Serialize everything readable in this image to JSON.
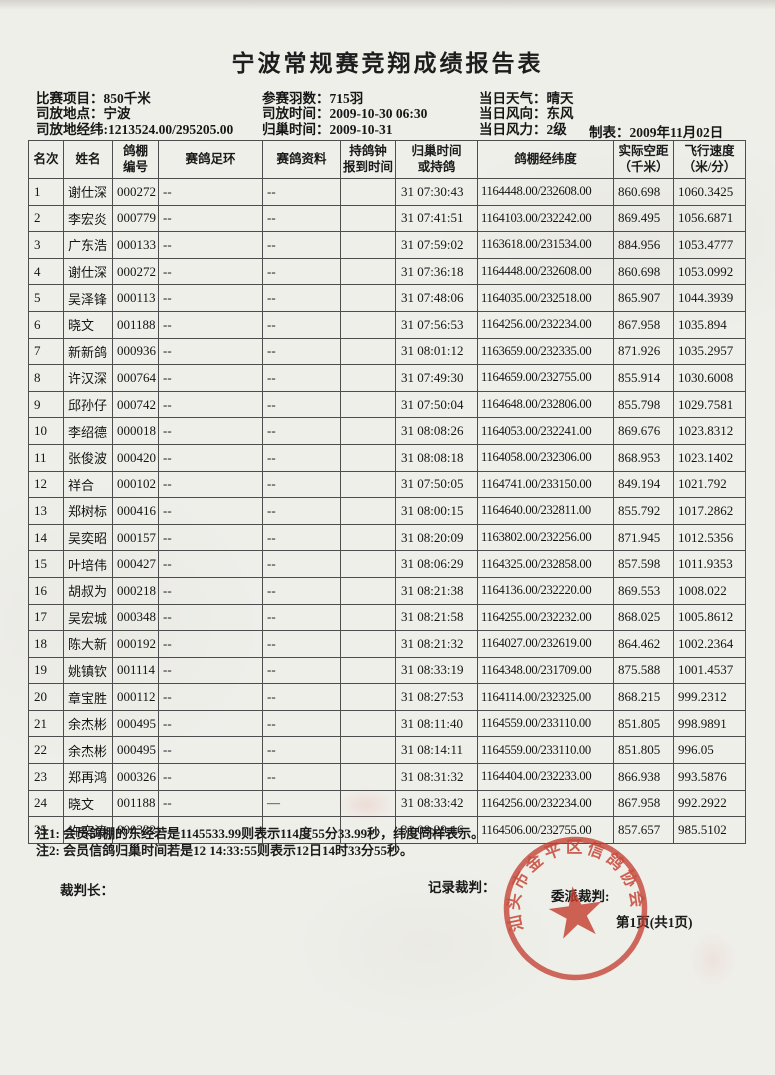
{
  "title": "宁波常规赛竞翔成绩报告表",
  "info": {
    "col1": [
      "比赛项目：850千米",
      "司放地点：宁波",
      "司放地经纬:1213524.00/295205.00"
    ],
    "col2": [
      "参赛羽数：715羽",
      "司放时间：2009-10-30 06:30",
      "归巢时间：2009-10-31"
    ],
    "col3": [
      "当日天气：晴天",
      "当日风向：东风",
      "当日风力：2级"
    ],
    "made": "制表：2009年11月02日"
  },
  "table": {
    "headers": [
      [
        "名次"
      ],
      [
        "姓名"
      ],
      [
        "鸽棚",
        "编号"
      ],
      [
        "赛鸽足环"
      ],
      [
        "赛鸽资料"
      ],
      [
        "持鸽钟",
        "报到时间"
      ],
      [
        "归巢时间",
        "或持鸽"
      ],
      [
        "鸽棚经纬度"
      ],
      [
        "实际空距",
        "（千米）"
      ],
      [
        "飞行速度",
        "（米/分）"
      ]
    ],
    "rows": [
      [
        "1",
        "谢仕深",
        "000272",
        "--",
        "--",
        "",
        "31 07:30:43",
        "1164448.00/232608.00",
        "860.698",
        "1060.3425"
      ],
      [
        "2",
        "李宏炎",
        "000779",
        "--",
        "--",
        "",
        "31 07:41:51",
        "1164103.00/232242.00",
        "869.495",
        "1056.6871"
      ],
      [
        "3",
        "广东浩",
        "000133",
        "--",
        "--",
        "",
        "31 07:59:02",
        "1163618.00/231534.00",
        "884.956",
        "1053.4777"
      ],
      [
        "4",
        "谢仕深",
        "000272",
        "--",
        "--",
        "",
        "31 07:36:18",
        "1164448.00/232608.00",
        "860.698",
        "1053.0992"
      ],
      [
        "5",
        "吴泽锋",
        "000113",
        "--",
        "--",
        "",
        "31 07:48:06",
        "1164035.00/232518.00",
        "865.907",
        "1044.3939"
      ],
      [
        "6",
        "晓文",
        "001188",
        "--",
        "--",
        "",
        "31 07:56:53",
        "1164256.00/232234.00",
        "867.958",
        "1035.894"
      ],
      [
        "7",
        "新新鸽",
        "000936",
        "--",
        "--",
        "",
        "31 08:01:12",
        "1163659.00/232335.00",
        "871.926",
        "1035.2957"
      ],
      [
        "8",
        "许汉深",
        "000764",
        "--",
        "--",
        "",
        "31 07:49:30",
        "1164659.00/232755.00",
        "855.914",
        "1030.6008"
      ],
      [
        "9",
        "邱孙仔",
        "000742",
        "--",
        "--",
        "",
        "31 07:50:04",
        "1164648.00/232806.00",
        "855.798",
        "1029.7581"
      ],
      [
        "10",
        "李绍德",
        "000018",
        "--",
        "--",
        "",
        "31 08:08:26",
        "1164053.00/232241.00",
        "869.676",
        "1023.8312"
      ],
      [
        "11",
        "张俊波",
        "000420",
        "--",
        "--",
        "",
        "31 08:08:18",
        "1164058.00/232306.00",
        "868.953",
        "1023.1402"
      ],
      [
        "12",
        "祥合",
        "000102",
        "--",
        "--",
        "",
        "31 07:50:05",
        "1164741.00/233150.00",
        "849.194",
        "1021.792"
      ],
      [
        "13",
        "郑树标",
        "000416",
        "--",
        "--",
        "",
        "31 08:00:15",
        "1164640.00/232811.00",
        "855.792",
        "1017.2862"
      ],
      [
        "14",
        "吴奕昭",
        "000157",
        "--",
        "--",
        "",
        "31 08:20:09",
        "1163802.00/232256.00",
        "871.945",
        "1012.5356"
      ],
      [
        "15",
        "叶培伟",
        "000427",
        "--",
        "--",
        "",
        "31 08:06:29",
        "1164325.00/232858.00",
        "857.598",
        "1011.9353"
      ],
      [
        "16",
        "胡叔为",
        "000218",
        "--",
        "--",
        "",
        "31 08:21:38",
        "1164136.00/232220.00",
        "869.553",
        "1008.022"
      ],
      [
        "17",
        "吴宏城",
        "000348",
        "--",
        "--",
        "",
        "31 08:21:58",
        "1164255.00/232232.00",
        "868.025",
        "1005.8612"
      ],
      [
        "18",
        "陈大新",
        "000192",
        "--",
        "--",
        "",
        "31 08:21:32",
        "1164027.00/232619.00",
        "864.462",
        "1002.2364"
      ],
      [
        "19",
        "姚镇钦",
        "001114",
        "--",
        "--",
        "",
        "31 08:33:19",
        "1164348.00/231709.00",
        "875.588",
        "1001.4537"
      ],
      [
        "20",
        "章宝胜",
        "000112",
        "--",
        "--",
        "",
        "31 08:27:53",
        "1164114.00/232325.00",
        "868.215",
        "999.2312"
      ],
      [
        "21",
        "余杰彬",
        "000495",
        "--",
        "--",
        "",
        "31 08:11:40",
        "1164559.00/233110.00",
        "851.805",
        "998.9891"
      ],
      [
        "22",
        "余杰彬",
        "000495",
        "--",
        "--",
        "",
        "31 08:14:11",
        "1164559.00/233110.00",
        "851.805",
        "996.05"
      ],
      [
        "23",
        "郑再鸿",
        "000326",
        "--",
        "--",
        "",
        "31 08:31:32",
        "1164404.00/232233.00",
        "866.938",
        "993.5876"
      ],
      [
        "24",
        "晓文",
        "001188",
        "--",
        "—",
        "",
        "31 08:33:42",
        "1164256.00/232234.00",
        "867.958",
        "992.2922"
      ],
      [
        "25",
        "许奕涛",
        "000332",
        "--",
        "—",
        "",
        "31 08:29:16",
        "1164506.00/232755.00",
        "857.657",
        "985.5102"
      ]
    ]
  },
  "notes": [
    "注1: 会员鸽棚的东经若是1145533.99则表示114度55分33.99秒，纬度同样表示。",
    "注2: 会员信鸽归巢时间若是12 14:33:55则表示12日14时33分55秒。"
  ],
  "footer": {
    "chief_judge_label": "裁判长：",
    "record_judge_label": "记录裁判：",
    "appointed_judge_label": "委派裁判:",
    "page_label": "第1页(共1页)"
  },
  "stamp": {
    "text": "汕头市金平区信鸽协会",
    "color": "#c23a2b"
  }
}
